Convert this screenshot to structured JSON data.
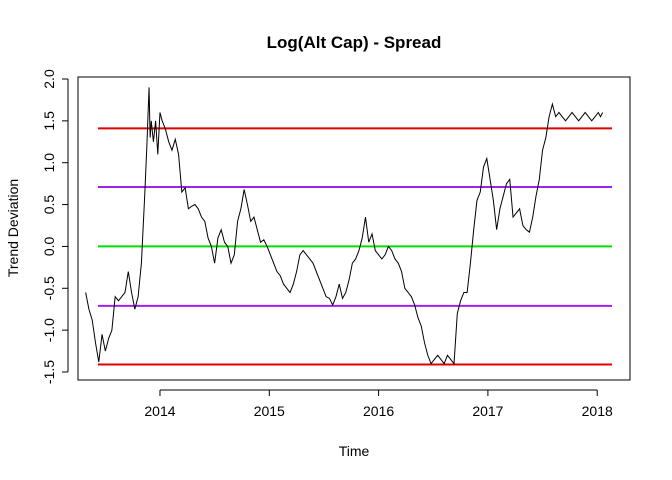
{
  "chart_data": {
    "type": "line",
    "title": "Log(Alt Cap) - Spread",
    "xlabel": "Time",
    "ylabel": "Trend Deviation",
    "xlim": [
      2013.25,
      2018.3
    ],
    "ylim": [
      -1.5,
      2.0
    ],
    "x_ticks": [
      2014,
      2015,
      2016,
      2017,
      2018
    ],
    "x_tick_labels": [
      "2014",
      "2015",
      "2016",
      "2017",
      "2018"
    ],
    "y_ticks": [
      -1.5,
      -1.0,
      -0.5,
      0.0,
      0.5,
      1.0,
      1.5,
      2.0
    ],
    "y_tick_labels": [
      "-1.5",
      "-1.0",
      "-0.5",
      "0.0",
      "0.5",
      "1.0",
      "1.5",
      "2.0"
    ],
    "grid": false,
    "legend": "none",
    "reference_lines": [
      {
        "y": 1.41,
        "color": "#e00000"
      },
      {
        "y": 0.71,
        "color": "#a020f0"
      },
      {
        "y": 0.0,
        "color": "#00dd00"
      },
      {
        "y": -0.71,
        "color": "#a020f0"
      },
      {
        "y": -1.41,
        "color": "#e00000"
      }
    ],
    "series": [
      {
        "color": "#000000",
        "x": [
          2013.32,
          2013.35,
          2013.38,
          2013.41,
          2013.44,
          2013.47,
          2013.5,
          2013.53,
          2013.56,
          2013.59,
          2013.62,
          2013.65,
          2013.68,
          2013.71,
          2013.74,
          2013.77,
          2013.8,
          2013.83,
          2013.86,
          2013.88,
          2013.9,
          2013.91,
          2013.92,
          2013.94,
          2013.96,
          2013.98,
          2014.0,
          2014.02,
          2014.05,
          2014.08,
          2014.11,
          2014.14,
          2014.17,
          2014.2,
          2014.23,
          2014.26,
          2014.29,
          2014.32,
          2014.35,
          2014.38,
          2014.41,
          2014.44,
          2014.47,
          2014.5,
          2014.53,
          2014.56,
          2014.59,
          2014.62,
          2014.65,
          2014.68,
          2014.71,
          2014.74,
          2014.77,
          2014.8,
          2014.83,
          2014.86,
          2014.89,
          2014.92,
          2014.95,
          2014.98,
          2015.01,
          2015.04,
          2015.07,
          2015.1,
          2015.13,
          2015.16,
          2015.19,
          2015.22,
          2015.25,
          2015.28,
          2015.31,
          2015.34,
          2015.37,
          2015.4,
          2015.43,
          2015.46,
          2015.49,
          2015.52,
          2015.55,
          2015.58,
          2015.61,
          2015.64,
          2015.67,
          2015.7,
          2015.73,
          2015.76,
          2015.79,
          2015.82,
          2015.85,
          2015.88,
          2015.91,
          2015.94,
          2015.97,
          2016.0,
          2016.03,
          2016.06,
          2016.09,
          2016.12,
          2016.15,
          2016.18,
          2016.21,
          2016.24,
          2016.27,
          2016.3,
          2016.33,
          2016.36,
          2016.39,
          2016.42,
          2016.45,
          2016.48,
          2016.51,
          2016.54,
          2016.57,
          2016.6,
          2016.63,
          2016.66,
          2016.69,
          2016.72,
          2016.75,
          2016.78,
          2016.81,
          2016.84,
          2016.87,
          2016.9,
          2016.93,
          2016.96,
          2016.99,
          2017.02,
          2017.05,
          2017.08,
          2017.11,
          2017.14,
          2017.17,
          2017.2,
          2017.23,
          2017.26,
          2017.29,
          2017.32,
          2017.35,
          2017.38,
          2017.41,
          2017.44,
          2017.47,
          2017.5,
          2017.53,
          2017.56,
          2017.59,
          2017.62,
          2017.65,
          2017.68,
          2017.71,
          2017.74,
          2017.77,
          2017.8,
          2017.83,
          2017.86,
          2017.89,
          2017.92,
          2017.95,
          2017.98,
          2018.01,
          2018.03,
          2018.05
        ],
        "y": [
          -0.55,
          -0.75,
          -0.88,
          -1.15,
          -1.38,
          -1.05,
          -1.25,
          -1.1,
          -1.0,
          -0.6,
          -0.65,
          -0.6,
          -0.55,
          -0.3,
          -0.55,
          -0.75,
          -0.6,
          -0.2,
          0.6,
          1.2,
          1.9,
          1.3,
          1.5,
          1.25,
          1.5,
          1.1,
          1.6,
          1.5,
          1.4,
          1.25,
          1.15,
          1.28,
          1.1,
          0.65,
          0.7,
          0.45,
          0.48,
          0.5,
          0.45,
          0.35,
          0.3,
          0.1,
          0.0,
          -0.2,
          0.1,
          0.2,
          0.05,
          0.0,
          -0.2,
          -0.1,
          0.3,
          0.45,
          0.68,
          0.5,
          0.3,
          0.35,
          0.2,
          0.05,
          0.08,
          0.0,
          -0.1,
          -0.2,
          -0.3,
          -0.35,
          -0.45,
          -0.5,
          -0.55,
          -0.45,
          -0.3,
          -0.1,
          -0.05,
          -0.1,
          -0.15,
          -0.2,
          -0.3,
          -0.4,
          -0.5,
          -0.6,
          -0.62,
          -0.7,
          -0.6,
          -0.45,
          -0.62,
          -0.55,
          -0.4,
          -0.2,
          -0.15,
          -0.05,
          0.1,
          0.35,
          0.05,
          0.15,
          -0.05,
          -0.1,
          -0.15,
          -0.1,
          0.0,
          -0.05,
          -0.15,
          -0.2,
          -0.3,
          -0.5,
          -0.55,
          -0.6,
          -0.7,
          -0.85,
          -0.95,
          -1.15,
          -1.3,
          -1.4,
          -1.35,
          -1.3,
          -1.35,
          -1.4,
          -1.3,
          -1.35,
          -1.4,
          -0.8,
          -0.65,
          -0.55,
          -0.55,
          -0.2,
          0.2,
          0.55,
          0.65,
          0.95,
          1.05,
          0.8,
          0.55,
          0.2,
          0.45,
          0.6,
          0.75,
          0.8,
          0.35,
          0.4,
          0.45,
          0.25,
          0.2,
          0.17,
          0.35,
          0.6,
          0.8,
          1.15,
          1.3,
          1.55,
          1.7,
          1.55,
          1.6,
          1.55,
          1.5,
          1.55,
          1.6,
          1.55,
          1.5,
          1.55,
          1.6,
          1.55,
          1.5,
          1.55,
          1.6,
          1.55,
          1.6
        ]
      }
    ]
  }
}
